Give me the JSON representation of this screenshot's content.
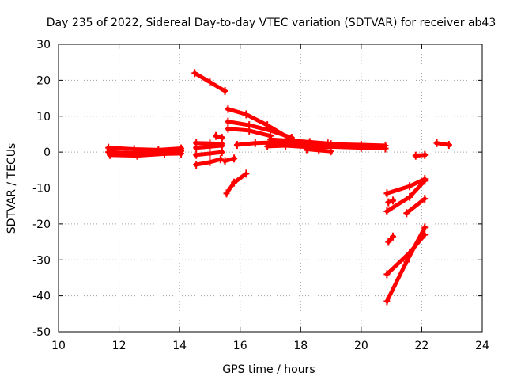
{
  "chart_data": {
    "type": "scatter",
    "title": "Day 235 of 2022, Sidereal Day-to-day VTEC variation (SDTVAR) for receiver ab43",
    "xlabel": "GPS time / hours",
    "ylabel": "SDTVAR / TECUs",
    "xlim": [
      10,
      24
    ],
    "ylim": [
      -50,
      30
    ],
    "xticks": [
      10,
      12,
      14,
      16,
      18,
      20,
      22,
      24
    ],
    "yticks": [
      -50,
      -40,
      -30,
      -20,
      -10,
      0,
      10,
      20,
      30
    ],
    "grid": true,
    "legend": "none",
    "color": "#ff0000",
    "series": [
      {
        "x": [
          11.65,
          12.5,
          13.3,
          14.05
        ],
        "y": [
          1.2,
          0.8,
          0.6,
          1.0
        ]
      },
      {
        "x": [
          11.65,
          12.5,
          13.3,
          14.05
        ],
        "y": [
          0.0,
          -0.3,
          0.2,
          0.3
        ]
      },
      {
        "x": [
          11.7,
          12.6,
          13.5,
          14.05
        ],
        "y": [
          -0.8,
          -1.0,
          -0.5,
          -0.4
        ]
      },
      {
        "x": [
          14.5,
          15.0,
          15.5
        ],
        "y": [
          22,
          19.5,
          17
        ]
      },
      {
        "x": [
          14.55,
          15.0,
          15.4
        ],
        "y": [
          2.5,
          2.4,
          2.3
        ]
      },
      {
        "x": [
          14.55,
          15.0,
          15.4
        ],
        "y": [
          1.2,
          1.5,
          1.8
        ]
      },
      {
        "x": [
          14.55,
          15.0,
          15.4
        ],
        "y": [
          -0.8,
          -0.4,
          0.0
        ]
      },
      {
        "x": [
          14.55,
          15.0,
          15.35
        ],
        "y": [
          -3.5,
          -2.8,
          -2.0
        ]
      },
      {
        "x": [
          15.2,
          15.4
        ],
        "y": [
          4.5,
          4.0
        ]
      },
      {
        "x": [
          15.5,
          15.8
        ],
        "y": [
          -2.5,
          -1.8
        ]
      },
      {
        "x": [
          15.55,
          15.8,
          16.2
        ],
        "y": [
          -11.5,
          -8.5,
          -6.0
        ]
      },
      {
        "x": [
          15.6,
          16.2,
          16.9,
          17.7
        ],
        "y": [
          12,
          10.5,
          7.5,
          3.5
        ]
      },
      {
        "x": [
          15.6,
          16.3,
          17.0,
          17.7
        ],
        "y": [
          8.5,
          7.5,
          6.0,
          4.0
        ]
      },
      {
        "x": [
          15.6,
          16.3,
          17.0
        ],
        "y": [
          6.5,
          6.0,
          4.5
        ]
      },
      {
        "x": [
          15.9,
          16.5,
          17.2,
          18.0,
          19.0,
          20.0,
          20.8
        ],
        "y": [
          2.0,
          2.5,
          2.7,
          2.5,
          2.2,
          2.0,
          1.8
        ]
      },
      {
        "x": [
          16.9,
          17.5,
          18.2,
          19.0,
          20.0,
          20.8
        ],
        "y": [
          1.6,
          1.8,
          1.4,
          1.5,
          1.2,
          1.0
        ]
      },
      {
        "x": [
          17.0,
          17.6,
          18.3,
          18.9
        ],
        "y": [
          3.5,
          3.2,
          2.8,
          2.4
        ]
      },
      {
        "x": [
          18.2,
          18.6,
          19.0
        ],
        "y": [
          0.8,
          0.5,
          0.2
        ]
      },
      {
        "x": [
          20.85,
          21.6,
          22.1
        ],
        "y": [
          -11.5,
          -9.5,
          -7.5
        ]
      },
      {
        "x": [
          20.85,
          21.6,
          22.1
        ],
        "y": [
          -16.5,
          -12.5,
          -8.0
        ]
      },
      {
        "x": [
          20.9,
          21.05
        ],
        "y": [
          -14.0,
          -13.5
        ]
      },
      {
        "x": [
          20.9,
          21.05
        ],
        "y": [
          -25.0,
          -23.5
        ]
      },
      {
        "x": [
          21.5,
          22.1
        ],
        "y": [
          -17.0,
          -13.0
        ]
      },
      {
        "x": [
          20.85,
          21.6,
          22.1
        ],
        "y": [
          -34.0,
          -28.0,
          -23.0
        ]
      },
      {
        "x": [
          20.85,
          21.5,
          22.1
        ],
        "y": [
          -41.5,
          -30.5,
          -21.0
        ]
      },
      {
        "x": [
          21.8,
          22.1
        ],
        "y": [
          -1.0,
          -0.8
        ]
      },
      {
        "x": [
          22.5,
          22.9
        ],
        "y": [
          2.5,
          2.0
        ]
      }
    ]
  }
}
